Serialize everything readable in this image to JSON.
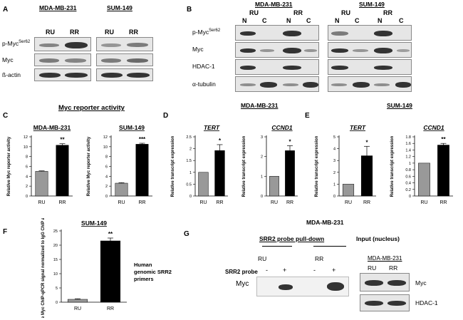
{
  "panels": {
    "A": {
      "label": "A",
      "lines": [
        "MDA-MB-231",
        "SUM-149"
      ],
      "groups": [
        "RU",
        "RR"
      ],
      "rows": [
        "p-Myc",
        "Myc",
        "ß-actin"
      ],
      "phospho_site": "Ser62"
    },
    "B": {
      "label": "B",
      "lines": [
        "MDA-MB-231",
        "SUM-149"
      ],
      "groups": [
        "RU",
        "RR"
      ],
      "fractions": [
        "N",
        "C"
      ],
      "rows": [
        "p-Myc",
        "Myc",
        "HDAC-1",
        "α-tubulin"
      ],
      "phospho_site": "Ser62"
    },
    "C": {
      "label": "C",
      "title": "Myc reporter activity"
    },
    "D": {
      "label": "D",
      "title": "MDA-MB-231"
    },
    "E": {
      "label": "E",
      "title": "SUM-149"
    },
    "F": {
      "label": "F",
      "annotation": "Human genomic SRR2 primers"
    },
    "G": {
      "label": "G",
      "title": "MDA-MB-231",
      "pulldown_title": "SRR2 probe pull-down",
      "input_title": "Input (nucleus)",
      "input_line": "MDA-MB-231",
      "groups": [
        "RU",
        "RR"
      ],
      "probe_label": "SRR2 probe",
      "probe_signs": [
        "-",
        "+",
        "-",
        "+"
      ],
      "band_label": "Myc",
      "input_rows": [
        "Myc",
        "HDAC-1"
      ]
    }
  },
  "chart_data": [
    {
      "type": "bar",
      "panel": "C",
      "title": "MDA-MB-231",
      "categories": [
        "RU",
        "RR"
      ],
      "values": [
        5.0,
        10.3
      ],
      "errors": [
        0.1,
        0.3
      ],
      "ylabel": "Relative Myc reporter activity",
      "ylim": [
        0,
        12
      ],
      "yticks": [
        0,
        2,
        4,
        6,
        8,
        10,
        12
      ],
      "significance": [
        "",
        "**"
      ],
      "colors": [
        "#999999",
        "#000000"
      ]
    },
    {
      "type": "bar",
      "panel": "C",
      "title": "SUM-149",
      "categories": [
        "RU",
        "RR"
      ],
      "values": [
        2.6,
        10.5
      ],
      "errors": [
        0.1,
        0.2
      ],
      "ylabel": "Relative Myc reporter activity",
      "ylim": [
        0,
        12
      ],
      "yticks": [
        0,
        2,
        4,
        6,
        8,
        10,
        12
      ],
      "significance": [
        "",
        "***"
      ],
      "colors": [
        "#999999",
        "#000000"
      ]
    },
    {
      "type": "bar",
      "panel": "D",
      "title": "TERT",
      "categories": [
        "RU",
        "RR"
      ],
      "values": [
        1.0,
        1.92
      ],
      "errors": [
        0,
        0.25
      ],
      "ylabel": "Relative transcript expression",
      "ylim": [
        0,
        2.5
      ],
      "yticks": [
        0,
        0.5,
        1.0,
        1.5,
        2.0,
        2.5
      ],
      "significance": [
        "",
        "*"
      ],
      "colors": [
        "#999999",
        "#000000"
      ]
    },
    {
      "type": "bar",
      "panel": "D",
      "title": "CCND1",
      "categories": [
        "RU",
        "RR"
      ],
      "values": [
        1.0,
        2.3
      ],
      "errors": [
        0,
        0.25
      ],
      "ylabel": "Relative transcript expression",
      "ylim": [
        0,
        3
      ],
      "yticks": [
        0,
        1,
        2,
        3
      ],
      "significance": [
        "",
        "*"
      ],
      "colors": [
        "#999999",
        "#000000"
      ]
    },
    {
      "type": "bar",
      "panel": "E",
      "title": "TERT",
      "categories": [
        "RU",
        "RR"
      ],
      "values": [
        1.0,
        3.4
      ],
      "errors": [
        0,
        0.8
      ],
      "ylabel": "Relative transcript expression",
      "ylim": [
        0,
        5
      ],
      "yticks": [
        0,
        1,
        2,
        3,
        4,
        5
      ],
      "significance": [
        "",
        "*"
      ],
      "colors": [
        "#999999",
        "#000000"
      ]
    },
    {
      "type": "bar",
      "panel": "E",
      "title": "CCND1",
      "categories": [
        "RU",
        "RR"
      ],
      "values": [
        1.0,
        1.55
      ],
      "errors": [
        0,
        0.05
      ],
      "ylabel": "Relative transcript expression",
      "ylim": [
        0,
        1.8
      ],
      "yticks": [
        0,
        0.2,
        0.4,
        0.6,
        0.8,
        1.0,
        1.2,
        1.4,
        1.6,
        1.8
      ],
      "significance": [
        "",
        "**"
      ],
      "colors": [
        "#999999",
        "#000000"
      ]
    },
    {
      "type": "bar",
      "panel": "F",
      "title": "SUM-149",
      "categories": [
        "RU",
        "RR"
      ],
      "values": [
        1.0,
        21.5
      ],
      "errors": [
        0.2,
        1.0
      ],
      "ylabel": "Relative Myc ChIP-qPCR signal normalized to IgG ChIP and Input",
      "ylim": [
        0,
        25
      ],
      "yticks": [
        0,
        5,
        10,
        15,
        20,
        25
      ],
      "significance": [
        "",
        "**"
      ],
      "colors": [
        "#999999",
        "#000000"
      ]
    }
  ]
}
